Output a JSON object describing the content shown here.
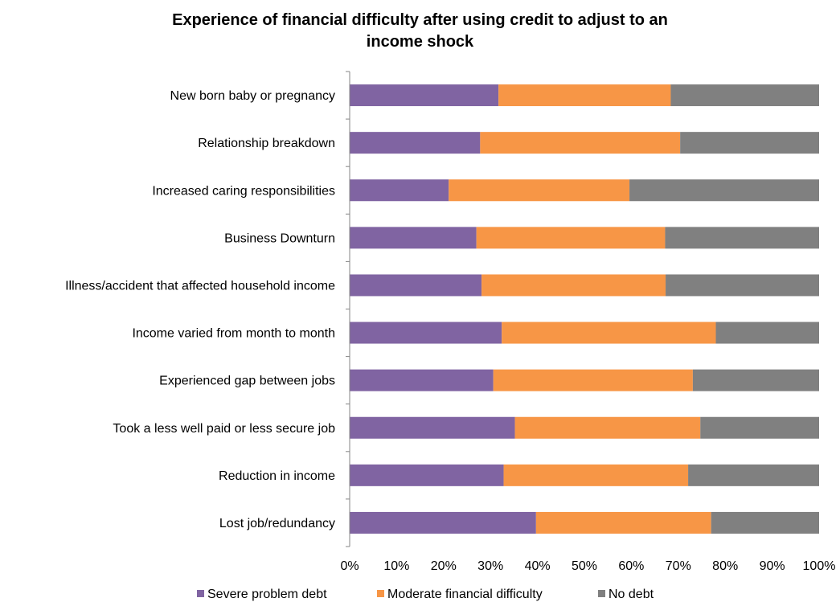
{
  "chart_data": {
    "type": "bar",
    "orientation": "horizontal",
    "stacked": true,
    "title_lines": [
      "Experience of financial difficulty after using credit to adjust to an",
      "income shock"
    ],
    "categories": [
      "New born baby or pregnancy",
      "Relationship breakdown",
      "Increased caring responsibilities",
      "Business Downturn",
      "Illness/accident that affected household income",
      "Income varied from month to month",
      "Experienced gap between jobs",
      "Took a less well paid or less secure job",
      "Reduction in income",
      "Lost job/redundancy"
    ],
    "series": [
      {
        "name": "Severe problem debt",
        "color": "#8064A2",
        "values": [
          31.7,
          27.8,
          21.1,
          27.0,
          28.1,
          32.4,
          30.6,
          35.2,
          32.8,
          39.7
        ]
      },
      {
        "name": "Moderate financial difficulty",
        "color": "#F79646",
        "values": [
          36.7,
          42.6,
          38.5,
          40.2,
          39.2,
          45.6,
          42.5,
          39.5,
          39.3,
          37.3
        ]
      },
      {
        "name": "No debt",
        "color": "#808080",
        "values": [
          31.6,
          29.6,
          40.4,
          32.8,
          32.7,
          22.0,
          26.9,
          25.3,
          27.9,
          23.0
        ]
      }
    ],
    "x_ticks": [
      "0%",
      "10%",
      "20%",
      "30%",
      "40%",
      "50%",
      "60%",
      "70%",
      "80%",
      "90%",
      "100%"
    ],
    "xlim": [
      0,
      100
    ],
    "grid": false,
    "legend_position": "bottom"
  }
}
